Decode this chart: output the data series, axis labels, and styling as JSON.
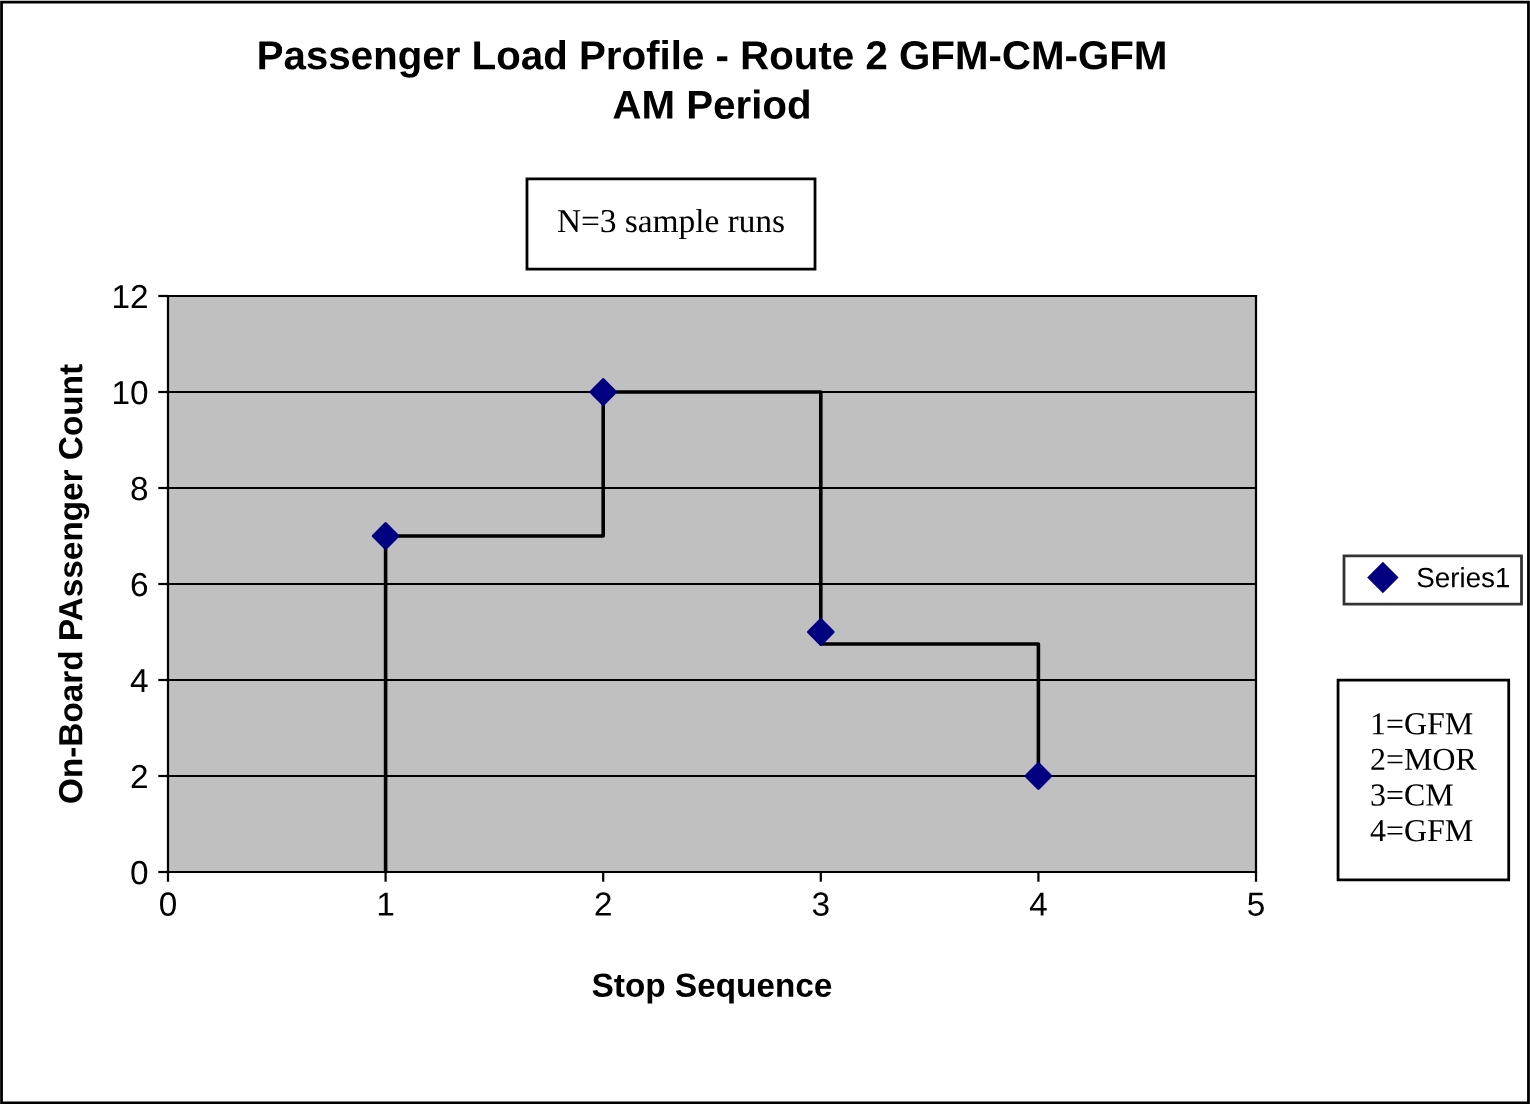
{
  "chart_data": {
    "type": "scatter",
    "title": "Passenger Load Profile - Route 2 GFM-CM-GFM\nAM Period",
    "xlabel": "Stop Sequence",
    "ylabel": "On-Board PAssenger Count",
    "xlim": [
      0,
      5
    ],
    "xticks": [
      0,
      1,
      2,
      3,
      4,
      5
    ],
    "ylim": [
      0,
      12
    ],
    "yticks": [
      0,
      2,
      4,
      6,
      8,
      10,
      12
    ],
    "grid": "y",
    "legend": "right",
    "series": [
      {
        "type": "line",
        "color": "#000000",
        "marker": "none",
        "x": [
          1,
          1,
          2,
          2,
          3,
          3,
          4,
          4
        ],
        "values": [
          0,
          7,
          7,
          10,
          10,
          4.75,
          4.75,
          2
        ]
      },
      {
        "name": "Series1",
        "color": "#000080",
        "marker": "diamond",
        "x": [
          1,
          2,
          3,
          4
        ],
        "values": [
          7,
          10,
          5,
          2
        ]
      }
    ],
    "annotations": [
      "N=3 sample runs",
      "1=GFM\n2=MOR\n3=CM\n4=GFM"
    ]
  }
}
